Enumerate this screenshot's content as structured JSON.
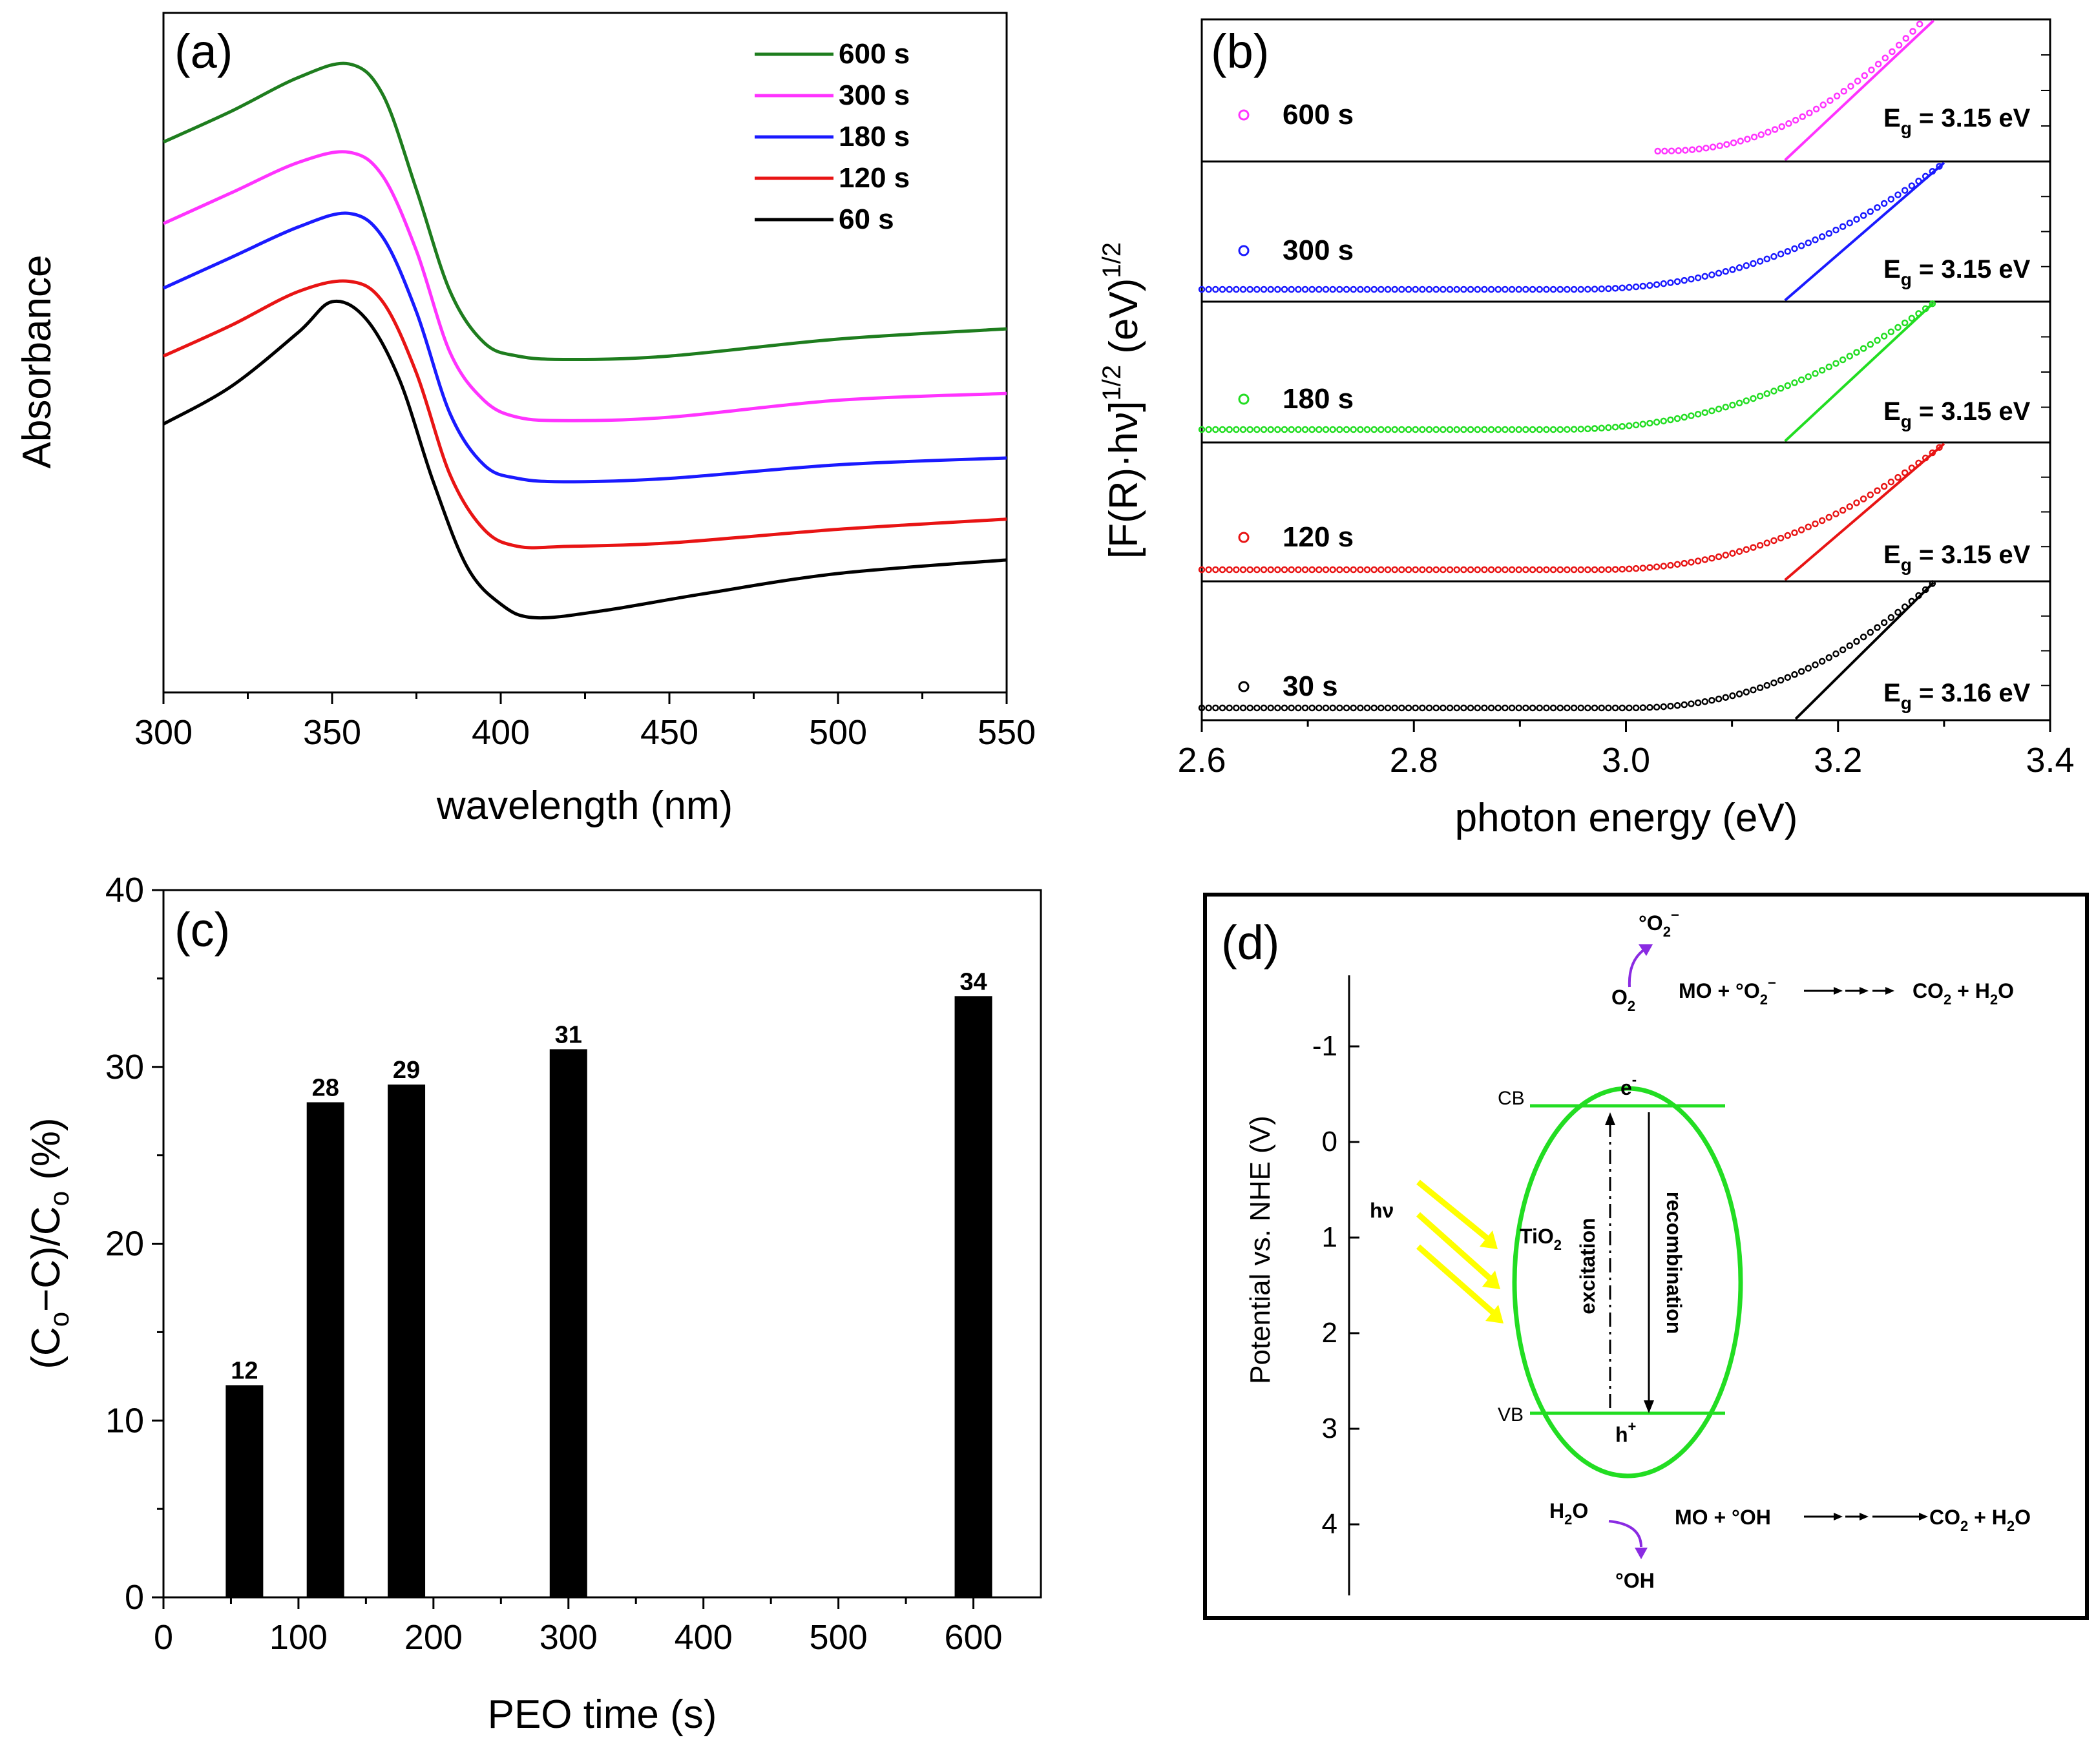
{
  "chart_data": [
    {
      "panel": "(a)",
      "type": "line",
      "xlabel": "wavelength (nm)",
      "ylabel": "Absorbance",
      "xlim": [
        300,
        550
      ],
      "ylim": [
        0,
        10
      ],
      "x_ticks": [
        "300",
        "350",
        "400",
        "450",
        "500",
        "550"
      ],
      "legend": [
        "600 s",
        "300 s",
        "180 s",
        "120 s",
        "60 s"
      ],
      "series": [
        {
          "name": "600 s",
          "color": "#1e7d1e",
          "x": [
            300,
            320,
            340,
            355,
            365,
            375,
            385,
            395,
            405,
            420,
            450,
            500,
            550
          ],
          "y": [
            8.1,
            8.55,
            9.05,
            9.25,
            8.8,
            7.4,
            5.9,
            5.15,
            4.95,
            4.9,
            4.95,
            5.2,
            5.35
          ]
        },
        {
          "name": "300 s",
          "color": "#ff33ff",
          "x": [
            300,
            320,
            340,
            355,
            365,
            375,
            385,
            395,
            405,
            420,
            450,
            500,
            550
          ],
          "y": [
            6.9,
            7.35,
            7.8,
            7.95,
            7.6,
            6.5,
            5.0,
            4.3,
            4.05,
            4.0,
            4.05,
            4.3,
            4.4
          ]
        },
        {
          "name": "180 s",
          "color": "#1a1aff",
          "x": [
            300,
            320,
            340,
            355,
            365,
            375,
            385,
            395,
            405,
            420,
            450,
            500,
            550
          ],
          "y": [
            5.95,
            6.4,
            6.85,
            7.05,
            6.7,
            5.6,
            4.1,
            3.35,
            3.15,
            3.1,
            3.15,
            3.35,
            3.45
          ]
        },
        {
          "name": "120 s",
          "color": "#e81414",
          "x": [
            300,
            320,
            340,
            355,
            365,
            375,
            385,
            395,
            405,
            420,
            450,
            500,
            550
          ],
          "y": [
            4.95,
            5.4,
            5.9,
            6.05,
            5.75,
            4.7,
            3.2,
            2.4,
            2.15,
            2.15,
            2.2,
            2.4,
            2.55
          ]
        },
        {
          "name": "60 s",
          "color": "#000000",
          "x": [
            300,
            320,
            340,
            350,
            360,
            370,
            380,
            390,
            400,
            410,
            430,
            460,
            500,
            550
          ],
          "y": [
            3.95,
            4.5,
            5.3,
            5.75,
            5.5,
            4.6,
            3.1,
            1.85,
            1.3,
            1.1,
            1.2,
            1.45,
            1.75,
            1.95
          ]
        }
      ]
    },
    {
      "panel": "(b)",
      "type": "scatter",
      "xlabel": "photon energy (eV)",
      "ylabel_parts": [
        "[F(R)·hν]",
        "1/2",
        " (eV)",
        "1/2"
      ],
      "xlim": [
        2.6,
        3.4
      ],
      "x_ticks": [
        "2.6",
        "2.8",
        "3.0",
        "3.2",
        "3.4"
      ],
      "series": [
        {
          "name": "600 s",
          "color": "#ff33ff",
          "eg_label": "g",
          "eg_value": " = 3.15 eV",
          "eg": 3.15,
          "onset": 3.03,
          "x_end": 3.28,
          "fit_x": [
            3.15,
            3.29
          ],
          "flat_level": 0.0
        },
        {
          "name": "300 s",
          "color": "#1a1aff",
          "eg_label": "g",
          "eg_value": " = 3.15 eV",
          "eg": 3.15,
          "onset": 2.95,
          "x_end": 3.3,
          "fit_x": [
            3.15,
            3.3
          ],
          "flat_level": 0.03
        },
        {
          "name": "180 s",
          "color": "#22dd22",
          "eg_label": "g",
          "eg_value": " = 3.15 eV",
          "eg": 3.15,
          "onset": 2.93,
          "x_end": 3.29,
          "fit_x": [
            3.15,
            3.29
          ],
          "flat_level": 0.04
        },
        {
          "name": "120 s",
          "color": "#e81414",
          "eg_label": "g",
          "eg_value": " = 3.15 eV",
          "eg": 3.15,
          "onset": 2.97,
          "x_end": 3.3,
          "fit_x": [
            3.15,
            3.3
          ],
          "flat_level": 0.02
        },
        {
          "name": "30 s",
          "color": "#000000",
          "eg_label": "g",
          "eg_value": " = 3.16 eV",
          "eg": 3.16,
          "onset": 3.0,
          "x_end": 3.29,
          "fit_x": [
            3.16,
            3.29
          ],
          "flat_level": 0.03
        }
      ]
    },
    {
      "panel": "(c)",
      "type": "bar",
      "xlabel": "PEO time (s)",
      "ylabel_parts": [
        "(C",
        "o",
        "−C)/C",
        "o",
        " (%)"
      ],
      "xlim": [
        0,
        650
      ],
      "ylim": [
        0,
        40
      ],
      "x_ticks": [
        "0",
        "100",
        "200",
        "300",
        "400",
        "500",
        "600"
      ],
      "y_ticks": [
        "0",
        "10",
        "20",
        "30",
        "40"
      ],
      "x": [
        60,
        120,
        180,
        300,
        600
      ],
      "values": [
        12,
        28,
        29,
        31,
        34
      ],
      "data_labels": [
        "12",
        "28",
        "29",
        "31",
        "34"
      ]
    }
  ],
  "schematic": {
    "panel": "(d)",
    "axis_title": "Potential vs. NHE (V)",
    "axis_ticks": [
      "-1",
      "0",
      "1",
      "2",
      "3",
      "4"
    ],
    "cb_label": "CB",
    "vb_label": "VB",
    "electron": "e",
    "electron_sup": "-",
    "hole": "h",
    "hole_sup": "+",
    "tio2": "TiO",
    "tio2_sub": "2",
    "excitation": "excitation",
    "recombination": "recombination",
    "light": "hν",
    "o2": "O",
    "o2_sub": "2",
    "superoxide": "°O",
    "superoxide_sub": "2",
    "superoxide_sup": "−",
    "top_reaction_a": "MO + °O",
    "top_reaction_sub": "2",
    "top_reaction_sup": "−",
    "top_reaction_b": "CO",
    "top_reaction_b_sub": "2",
    "top_reaction_c": " + H",
    "top_reaction_c_sub": "2",
    "top_reaction_d": "O",
    "h2o": "H",
    "h2o_sub": "2",
    "h2o_end": "O",
    "hydroxyl": "°OH",
    "bottom_reaction_a": "MO + °OH",
    "bottom_reaction_b": "CO",
    "bottom_reaction_b_sub": "2",
    "bottom_reaction_c": " + H",
    "bottom_reaction_c_sub": "2",
    "bottom_reaction_d": "O",
    "colors": {
      "band": "#22dd22",
      "light": "#ffff00",
      "radical_arrow": "#8a2be2"
    }
  }
}
